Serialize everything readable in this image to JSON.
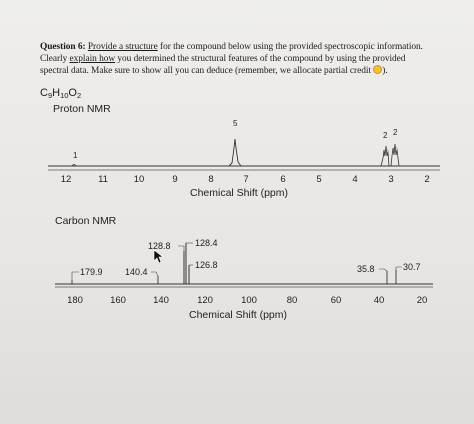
{
  "question": {
    "label": "Question 6:",
    "line1_prefix": " ",
    "line1_link": "Provide a structure",
    "line1_rest": " for the compound below using the provided spectroscopic information.",
    "line2_prefix": "Clearly ",
    "line2_link": "explain how",
    "line2_rest": " you determined the structural features of the compound by using the provided",
    "line3": "spectral data. Make sure to show all you can deduce (remember, we allocate partial credit ",
    "line3_end": ")."
  },
  "formula": {
    "c": "C",
    "c_count": "9",
    "h": "H",
    "h_count": "10",
    "o": "O",
    "o_count": "2"
  },
  "proton_nmr": {
    "label": "Proton NMR",
    "axis_title": "Chemical Shift (ppm)",
    "ticks": [
      "12",
      "11",
      "10",
      "9",
      "8",
      "7",
      "6",
      "5",
      "4",
      "3",
      "2"
    ],
    "peak_labels": [
      "1",
      "5",
      "2",
      "2"
    ]
  },
  "carbon_nmr": {
    "label": "Carbon NMR",
    "axis_title": "Chemical Shift (ppm)",
    "ticks": [
      "180",
      "160",
      "140",
      "120",
      "100",
      "80",
      "60",
      "40",
      "20"
    ],
    "peak_labels": [
      "128.8",
      "128.4",
      "126.8",
      "179.9",
      "140.4",
      "35.8",
      "30.7"
    ]
  },
  "chart_data": [
    {
      "type": "line",
      "title": "Proton NMR",
      "xlabel": "Chemical Shift (ppm)",
      "x_reversed": true,
      "xlim": [
        12,
        2
      ],
      "peaks": [
        {
          "shift": 11.5,
          "integration": "1"
        },
        {
          "shift": 7.3,
          "integration": "5"
        },
        {
          "shift": 2.95,
          "integration": "2"
        },
        {
          "shift": 2.7,
          "integration": "2"
        }
      ]
    },
    {
      "type": "line",
      "title": "Carbon NMR",
      "xlabel": "Chemical Shift (ppm)",
      "x_reversed": true,
      "xlim": [
        190,
        15
      ],
      "peaks": [
        {
          "shift": 179.9
        },
        {
          "shift": 140.4
        },
        {
          "shift": 128.8
        },
        {
          "shift": 128.4
        },
        {
          "shift": 126.8
        },
        {
          "shift": 35.8
        },
        {
          "shift": 30.7
        }
      ]
    }
  ],
  "colors": {
    "spectrum": "#333333",
    "smiley": "#f2c230"
  }
}
